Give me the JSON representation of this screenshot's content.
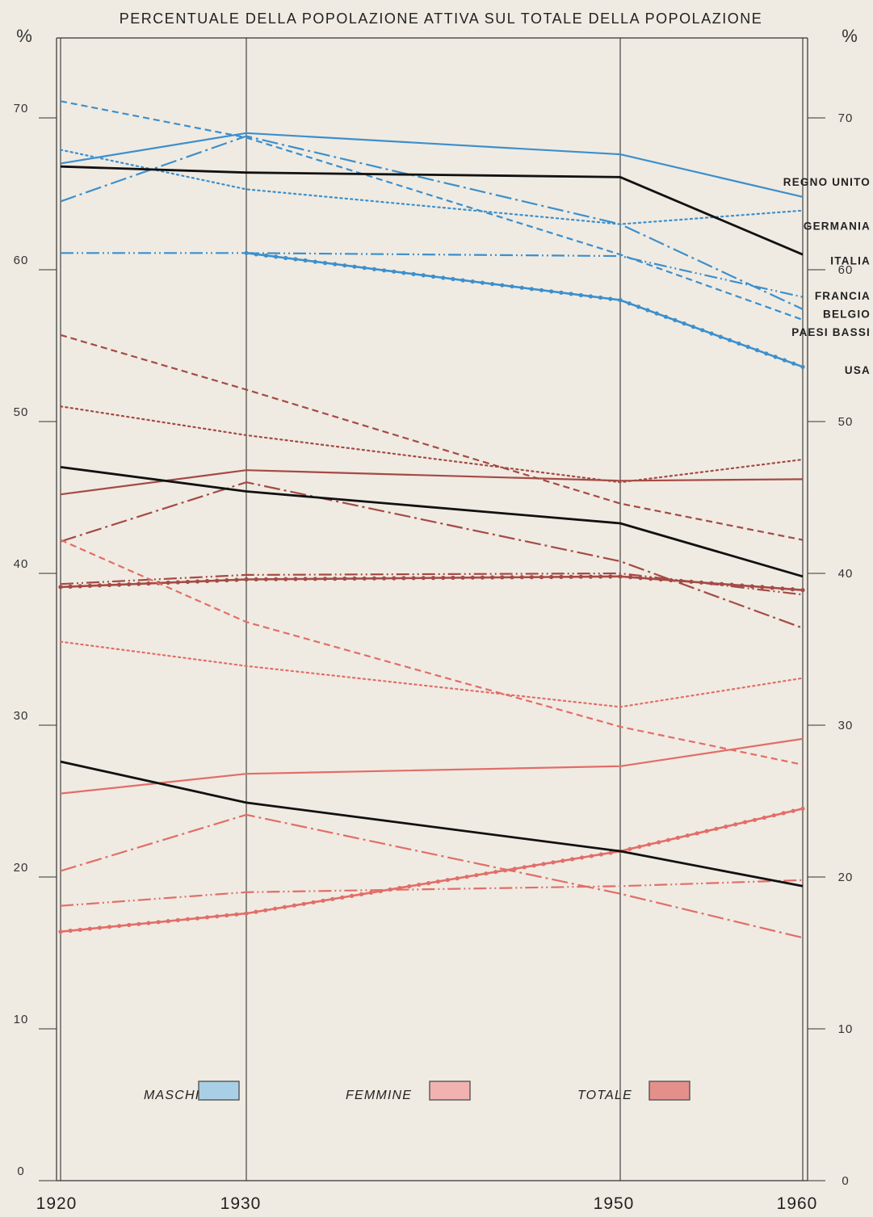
{
  "chart_data": {
    "type": "line",
    "title": "PERCENTUALE DELLA POPOLAZIONE ATTIVA SUL TOTALE DELLA POPOLAZIONE",
    "y_unit": "%",
    "x": [
      1920,
      1930,
      1950,
      1960
    ],
    "ylim": [
      0,
      75
    ],
    "y_ticks": [
      0,
      10,
      20,
      30,
      40,
      50,
      60,
      70
    ],
    "y_tick_labels": [
      "0",
      "10",
      "20",
      "30",
      "40",
      "50",
      "60",
      "70"
    ],
    "x_tick_labels": [
      "1920",
      "1930",
      "1950",
      "1960"
    ],
    "grid": false,
    "country_labels": [
      {
        "text": "REGNO UNITO",
        "y": 65.8
      },
      {
        "text": "GERMANIA",
        "y": 62.9
      },
      {
        "text": "ITALIA",
        "y": 60.6
      },
      {
        "text": "FRANCIA",
        "y": 58.3
      },
      {
        "text": "BELGIO",
        "y": 57.1
      },
      {
        "text": "PAESI BASSI",
        "y": 55.9
      },
      {
        "text": "USA",
        "y": 53.4
      }
    ],
    "legend": [
      {
        "label": "MASCHI",
        "color": "#a9cfe6"
      },
      {
        "label": "FEMMINE",
        "color": "#f2b3b0"
      },
      {
        "label": "TOTALE",
        "color": "#e3908d"
      }
    ],
    "colors": {
      "maschi": "#3d8fcc",
      "totale": "#a54a45",
      "femmine": "#e36d68",
      "italia": "#111111",
      "background": "#efebe2"
    },
    "groups": [
      {
        "group": "MASCHI",
        "color": "#3d8fcc",
        "series": [
          {
            "name": "REGNO UNITO",
            "style": "solid",
            "values": [
              67.0,
              69.0,
              67.6,
              64.8
            ]
          },
          {
            "name": "GERMANIA",
            "style": "dotted",
            "values": [
              67.9,
              65.3,
              63.0,
              63.9
            ]
          },
          {
            "name": "FRANCIA",
            "style": "dashdotdot",
            "values": [
              61.1,
              61.1,
              60.9,
              58.2
            ]
          },
          {
            "name": "BELGIO",
            "style": "dashdot",
            "values": [
              64.5,
              68.8,
              63.0,
              57.4
            ]
          },
          {
            "name": "PAESI BASSI",
            "style": "dashed",
            "values": [
              71.1,
              68.7,
              61.0,
              56.7
            ]
          },
          {
            "name": "USA",
            "style": "beaded",
            "values": [
              null,
              61.1,
              58.0,
              53.6
            ]
          }
        ]
      },
      {
        "group": "TOTALE",
        "color": "#a54a45",
        "series": [
          {
            "name": "REGNO UNITO",
            "style": "solid",
            "values": [
              45.2,
              46.8,
              46.1,
              46.2
            ]
          },
          {
            "name": "GERMANIA",
            "style": "dotted",
            "values": [
              51.0,
              49.1,
              46.0,
              47.5
            ]
          },
          {
            "name": "FRANCIA",
            "style": "dashdotdot",
            "values": [
              39.3,
              39.9,
              40.0,
              38.6
            ]
          },
          {
            "name": "BELGIO",
            "style": "dashdot",
            "values": [
              42.1,
              46.0,
              40.8,
              36.4
            ]
          },
          {
            "name": "PAESI BASSI",
            "style": "dashed",
            "values": [
              55.7,
              52.1,
              44.6,
              42.2
            ]
          },
          {
            "name": "USA",
            "style": "beaded",
            "values": [
              39.1,
              39.6,
              39.8,
              38.9
            ]
          }
        ]
      },
      {
        "group": "FEMMINE",
        "color": "#e36d68",
        "series": [
          {
            "name": "REGNO UNITO",
            "style": "solid",
            "values": [
              25.5,
              26.8,
              27.3,
              29.1
            ]
          },
          {
            "name": "GERMANIA",
            "style": "dotted",
            "values": [
              35.5,
              33.9,
              31.2,
              33.1
            ]
          },
          {
            "name": "FRANCIA",
            "style": "dashdotdot",
            "values": [
              18.1,
              19.0,
              19.4,
              19.8
            ]
          },
          {
            "name": "BELGIO",
            "style": "dashdot",
            "values": [
              20.4,
              24.1,
              18.9,
              16.0
            ]
          },
          {
            "name": "PAESI BASSI",
            "style": "dashed",
            "values": [
              42.2,
              36.8,
              29.9,
              27.4
            ]
          },
          {
            "name": "USA",
            "style": "beaded",
            "values": [
              16.4,
              17.6,
              21.7,
              24.5
            ]
          }
        ]
      },
      {
        "group": "ITALIA",
        "color": "#111111",
        "series": [
          {
            "name": "ITALIA MASCHI",
            "style": "solid",
            "values": [
              66.8,
              66.4,
              66.1,
              61.0
            ]
          },
          {
            "name": "ITALIA TOTALE",
            "style": "solid",
            "values": [
              47.0,
              45.4,
              43.3,
              39.8
            ]
          },
          {
            "name": "ITALIA FEMMINE",
            "style": "solid",
            "values": [
              27.6,
              24.9,
              21.7,
              19.4
            ]
          }
        ]
      }
    ]
  }
}
